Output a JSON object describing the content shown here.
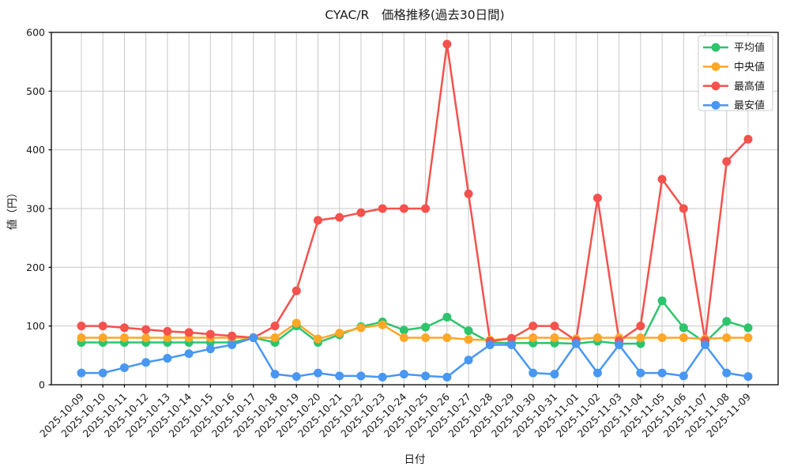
{
  "figure": {
    "background": "#ffffff",
    "frame_color": "#000000",
    "grid_color": "#c8c8c8",
    "text_color": "#1a1a1a"
  },
  "chart_data": {
    "type": "line",
    "title": "CYAC/R　価格推移(過去30日間)",
    "xlabel": "日付",
    "ylabel": "値（円）",
    "ylim": [
      0,
      600
    ],
    "yticks": [
      0,
      100,
      200,
      300,
      400,
      500,
      600
    ],
    "grid": true,
    "legend_position": "top-right",
    "categories": [
      "2025-10-09",
      "2025-10-10",
      "2025-10-11",
      "2025-10-12",
      "2025-10-13",
      "2025-10-14",
      "2025-10-15",
      "2025-10-16",
      "2025-10-17",
      "2025-10-18",
      "2025-10-19",
      "2025-10-20",
      "2025-10-21",
      "2025-10-22",
      "2025-10-23",
      "2025-10-24",
      "2025-10-25",
      "2025-10-26",
      "2025-10-27",
      "2025-10-28",
      "2025-10-29",
      "2025-10-30",
      "2025-10-31",
      "2025-11-01",
      "2025-11-02",
      "2025-11-03",
      "2025-11-04",
      "2025-11-05",
      "2025-11-06",
      "2025-11-07",
      "2025-11-08",
      "2025-11-09"
    ],
    "series": [
      {
        "key": "average",
        "name": "平均値",
        "color": "#2dc46d",
        "values": [
          72,
          72,
          72,
          72,
          72,
          72,
          72,
          72,
          80,
          72,
          100,
          72,
          85,
          99,
          107,
          93,
          98,
          115,
          92,
          72,
          71,
          71,
          71,
          70,
          74,
          70,
          70,
          143,
          97,
          72,
          108,
          97
        ]
      },
      {
        "key": "median",
        "name": "中央値",
        "color": "#ffa726",
        "values": [
          80,
          80,
          80,
          80,
          80,
          80,
          80,
          80,
          80,
          80,
          105,
          78,
          88,
          97,
          102,
          80,
          80,
          80,
          77,
          76,
          79,
          80,
          80,
          78,
          80,
          80,
          80,
          80,
          80,
          78,
          80,
          80
        ]
      },
      {
        "key": "max",
        "name": "最高値",
        "color": "#f5514d",
        "values": [
          100,
          100,
          97,
          94,
          91,
          89,
          86,
          83,
          80,
          100,
          160,
          280,
          285,
          293,
          300,
          300,
          300,
          580,
          325,
          74,
          79,
          100,
          100,
          75,
          318,
          75,
          100,
          350,
          300,
          75,
          380,
          418
        ]
      },
      {
        "key": "min",
        "name": "最安値",
        "color": "#4897f2",
        "values": [
          20,
          20,
          29,
          38,
          45,
          53,
          61,
          68,
          80,
          18,
          14,
          20,
          15,
          15,
          13,
          18,
          15,
          13,
          42,
          68,
          68,
          20,
          18,
          70,
          20,
          68,
          20,
          20,
          15,
          68,
          20,
          14
        ]
      }
    ]
  }
}
